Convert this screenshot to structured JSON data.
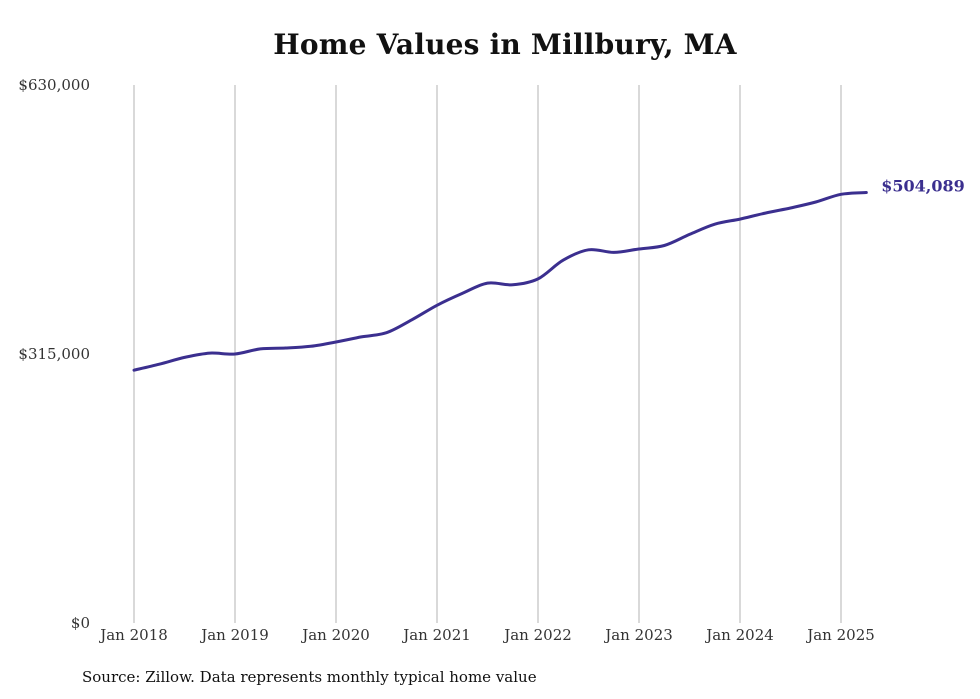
{
  "colors": {
    "line": "#3b2f8f",
    "grid": "#b3b3b3",
    "end_label": "#3b2f8f"
  },
  "chart_data": {
    "type": "line",
    "title": "Home Values in Millbury, MA",
    "xlabel": "",
    "ylabel": "",
    "ylim": [
      0,
      630000
    ],
    "y_ticks": [
      0,
      315000,
      630000
    ],
    "y_tick_labels": [
      "$0",
      "$315,000",
      "$630,000"
    ],
    "x_tick_labels": [
      "Jan 2018",
      "Jan 2019",
      "Jan 2020",
      "Jan 2021",
      "Jan 2022",
      "Jan 2023",
      "Jan 2024",
      "Jan 2025"
    ],
    "grid": "vertical",
    "end_label": "$504,089",
    "series": [
      {
        "x": [
          "2018-01",
          "2018-04",
          "2018-07",
          "2018-10",
          "2019-01",
          "2019-04",
          "2019-07",
          "2019-10",
          "2020-01",
          "2020-04",
          "2020-07",
          "2020-10",
          "2021-01",
          "2021-04",
          "2021-07",
          "2021-10",
          "2022-01",
          "2022-04",
          "2022-07",
          "2022-10",
          "2023-01",
          "2023-04",
          "2023-07",
          "2023-10",
          "2024-01",
          "2024-04",
          "2024-07",
          "2024-10",
          "2025-01",
          "2025-04"
        ],
        "values": [
          296000,
          303000,
          311000,
          316000,
          315000,
          321000,
          322000,
          324000,
          329000,
          335000,
          340000,
          355000,
          372000,
          386000,
          398000,
          396000,
          403000,
          425000,
          437000,
          434000,
          438000,
          442000,
          455000,
          467000,
          473000,
          480000,
          486000,
          493000,
          502000,
          504089
        ]
      }
    ]
  },
  "source": "Source: Zillow. Data represents monthly typical home value"
}
